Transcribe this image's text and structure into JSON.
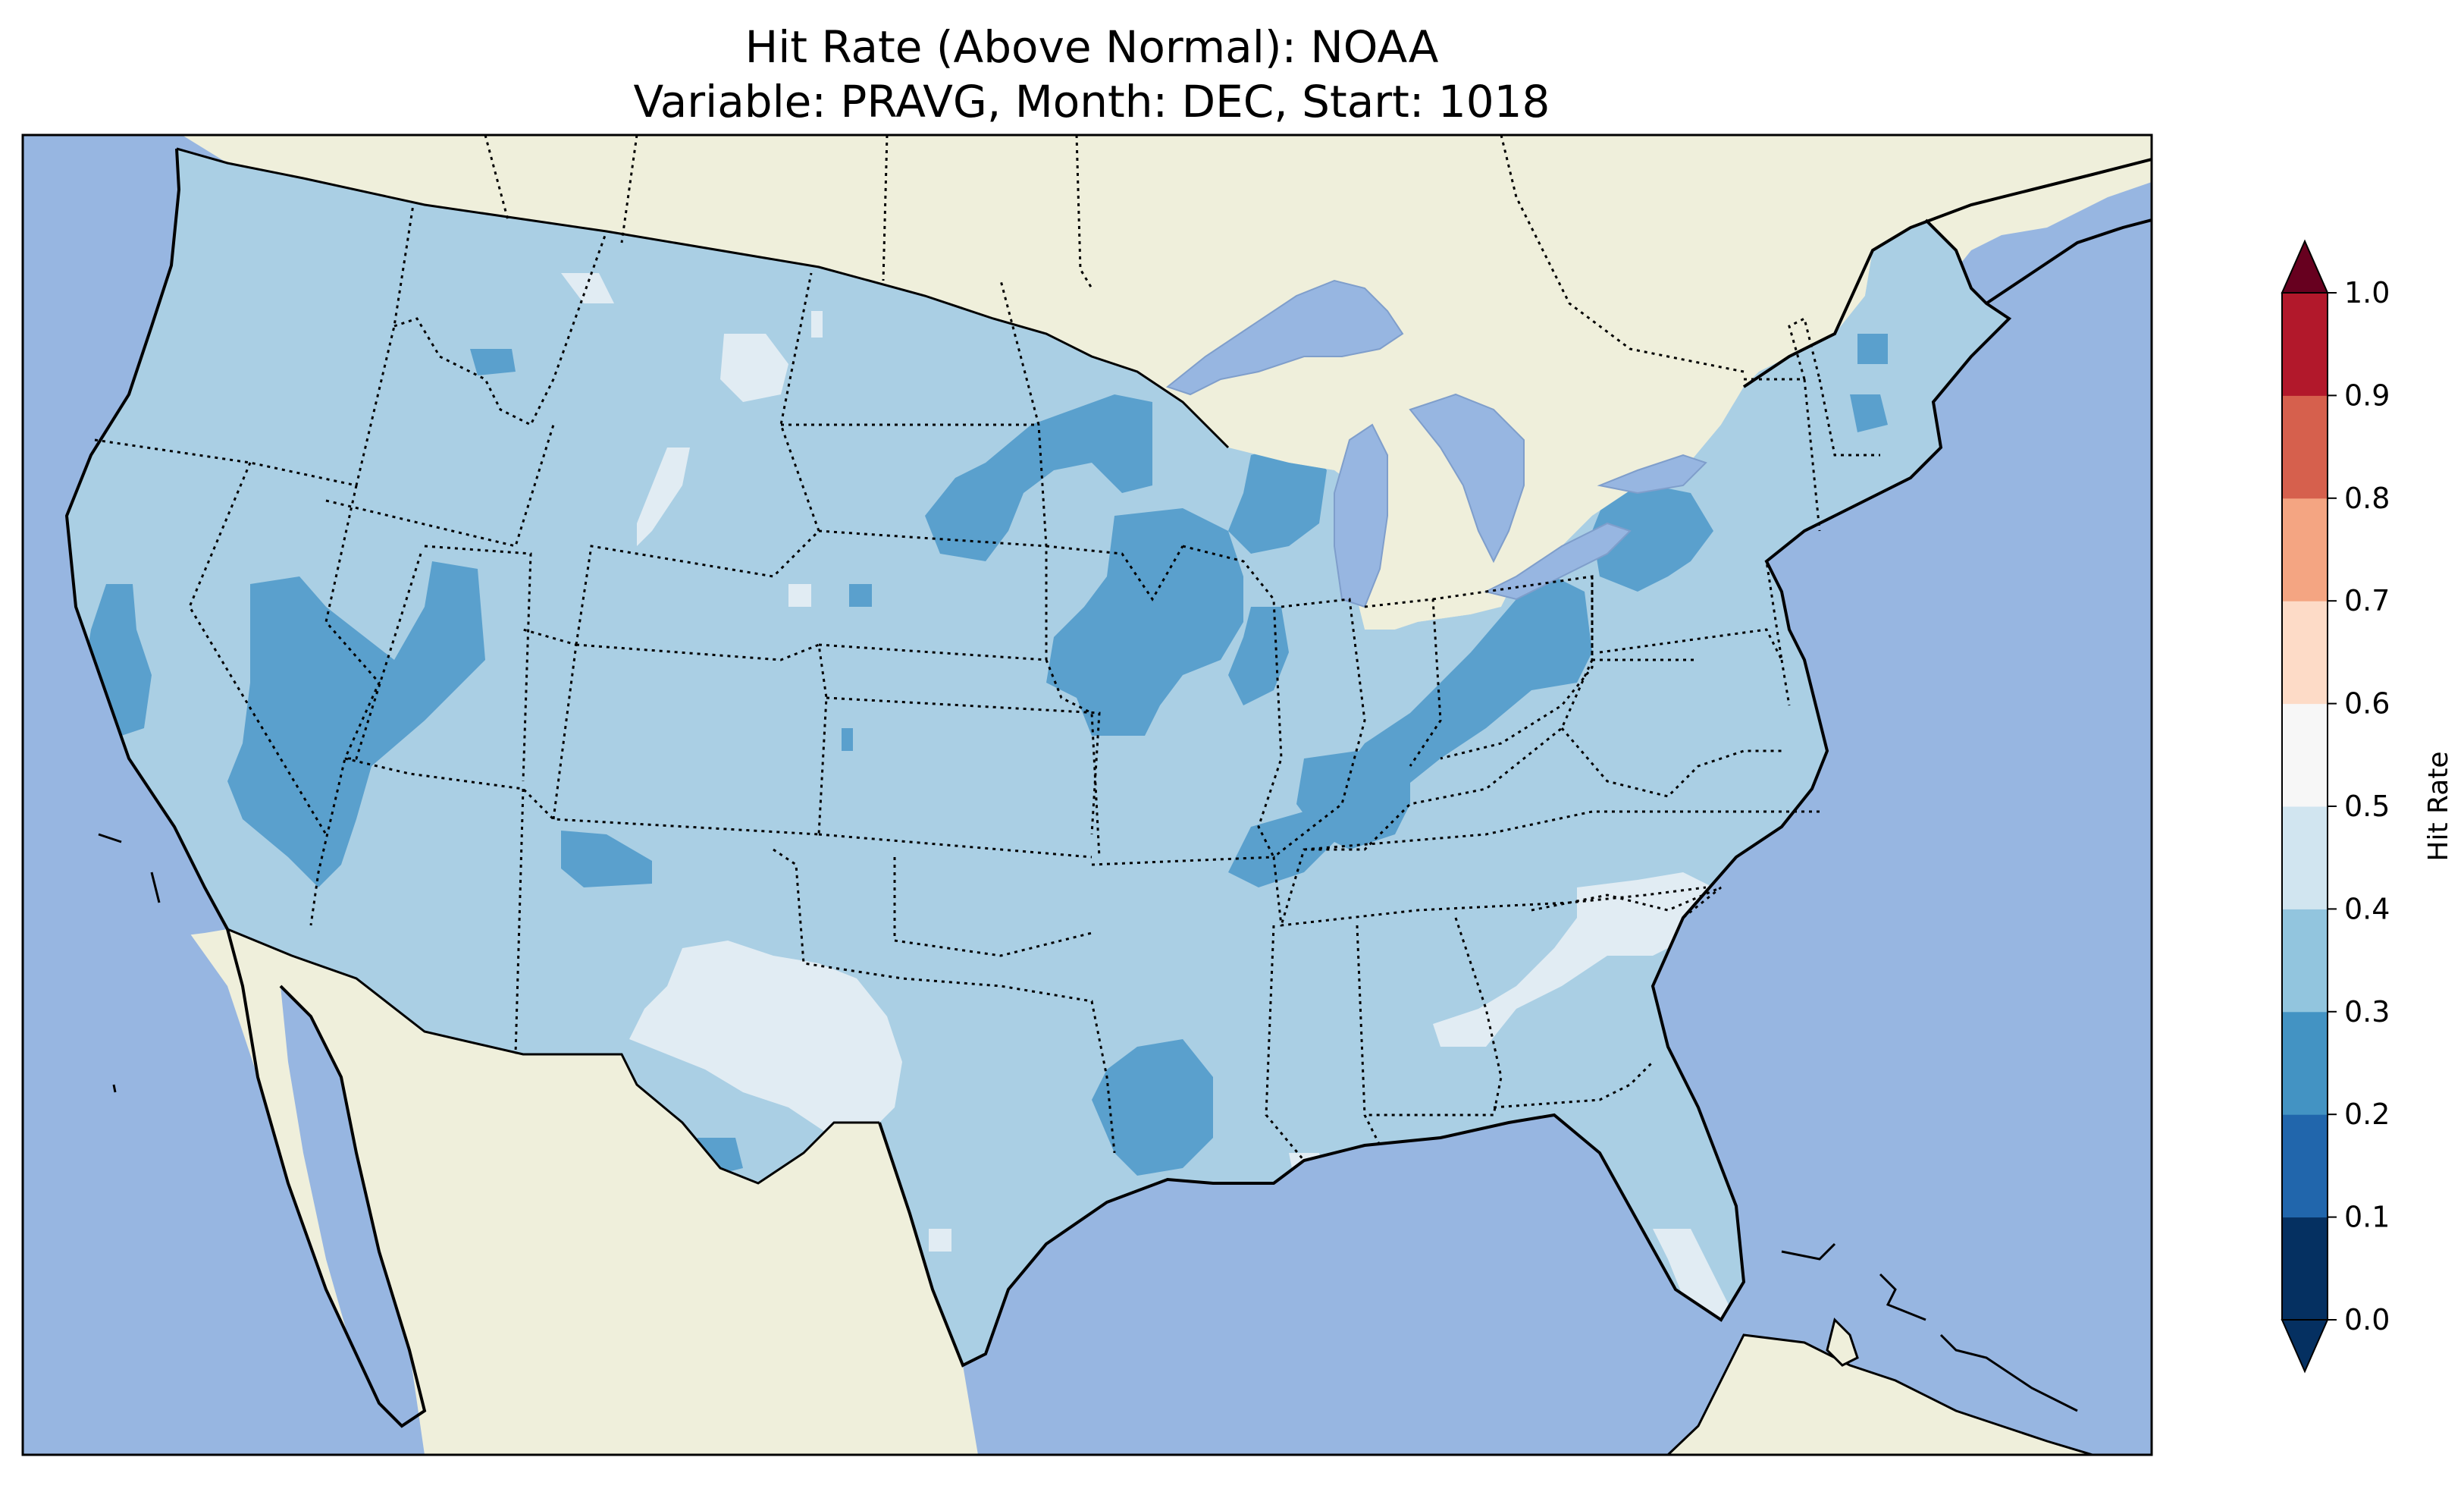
{
  "title": {
    "line1": "Hit Rate (Above Normal): NOAA",
    "line2": "Variable: PRAVG, Month: DEC, Start: 1018"
  },
  "colors": {
    "ocean": "#97b6e1",
    "land": "#efefdb",
    "coastline": "#000000",
    "border": "#000000"
  },
  "map_data": {
    "region": "Contiguous United States",
    "field": "Hit Rate",
    "category": "Above Normal",
    "dominant_range": "0.3-0.4",
    "lower_hit_areas_range": "0.2-0.3",
    "higher_hit_areas_range": "0.4-0.5"
  },
  "colorbar": {
    "label": "Hit Rate",
    "ticks": [
      "0.0",
      "0.1",
      "0.2",
      "0.3",
      "0.4",
      "0.5",
      "0.6",
      "0.7",
      "0.8",
      "0.9",
      "1.0"
    ],
    "bin_colors": [
      "#053061",
      "#2166ac",
      "#4393c3",
      "#92c5de",
      "#d1e5f0",
      "#f7f7f7",
      "#fddbc7",
      "#f4a582",
      "#d6604d",
      "#b2182b"
    ],
    "under_color": "#053061",
    "over_color": "#67001f"
  },
  "chart_data": {
    "type": "heatmap",
    "title": "Hit Rate (Above Normal): NOAA\nVariable: PRAVG, Month: DEC, Start: 1018",
    "colorbar_label": "Hit Rate",
    "colorbar_range": [
      0.0,
      1.0
    ],
    "colorbar_levels": [
      0.0,
      0.1,
      0.2,
      0.3,
      0.4,
      0.5,
      0.6,
      0.7,
      0.8,
      0.9,
      1.0
    ],
    "colorbar_extend": "both"
  }
}
